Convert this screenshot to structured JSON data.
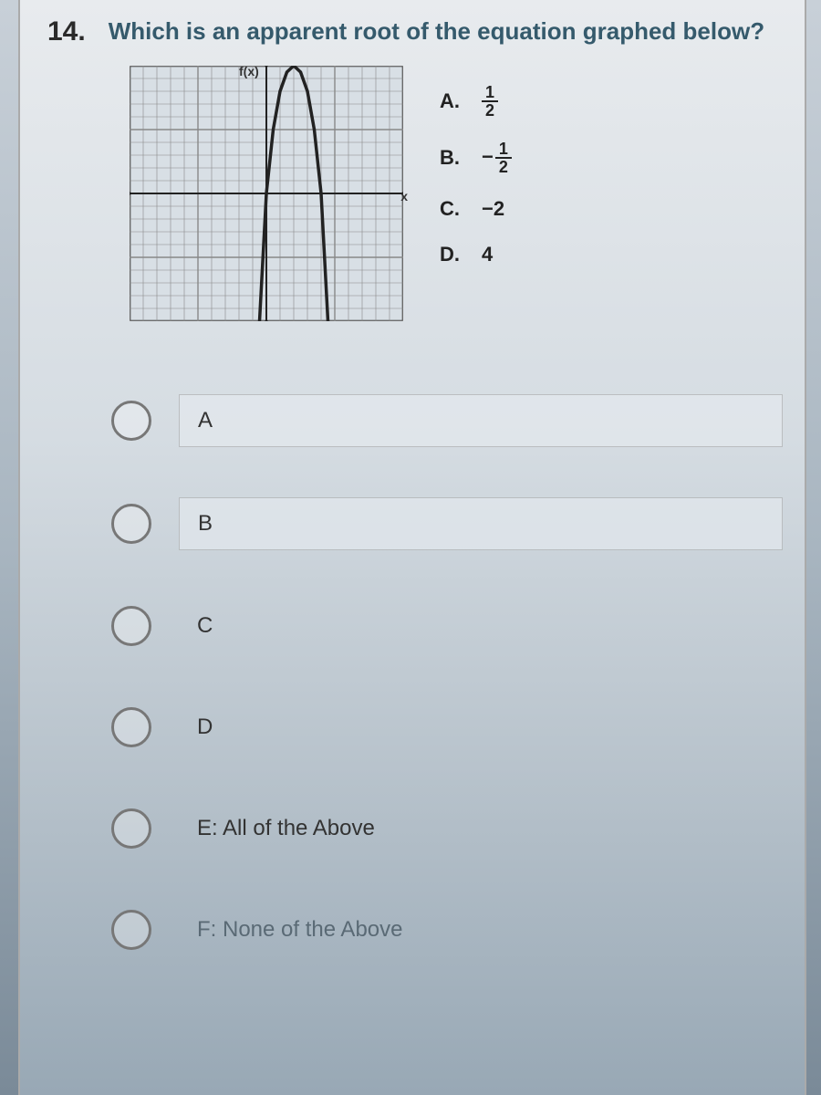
{
  "question": {
    "number": "14.",
    "text": "Which is an apparent root of the equation graphed below?",
    "color": "#355a6c"
  },
  "graph": {
    "axis_label_y": "f(x)",
    "axis_label_x": "x",
    "grid_color": "#555555",
    "grid_minor_color": "#888888",
    "background_color": "#d8dfe5",
    "curve_color": "#222222",
    "xlim": [
      -10,
      10
    ],
    "ylim": [
      -10,
      10
    ],
    "curve_points": [
      [
        -0.5,
        -10
      ],
      [
        -0.2,
        -4
      ],
      [
        0,
        0
      ],
      [
        0.5,
        5
      ],
      [
        1,
        8
      ],
      [
        1.5,
        9.5
      ],
      [
        2,
        10
      ],
      [
        2.5,
        9.5
      ],
      [
        3,
        8
      ],
      [
        3.5,
        5
      ],
      [
        4,
        0
      ],
      [
        4.2,
        -4
      ],
      [
        4.5,
        -10
      ]
    ]
  },
  "answer_choices": [
    {
      "label": "A.",
      "type": "fraction",
      "num": "1",
      "den": "2",
      "negative": false
    },
    {
      "label": "B.",
      "type": "fraction",
      "num": "1",
      "den": "2",
      "negative": true
    },
    {
      "label": "C.",
      "type": "plain",
      "value": "−2"
    },
    {
      "label": "D.",
      "type": "plain",
      "value": "4"
    }
  ],
  "options": [
    {
      "label": "A",
      "boxed": true
    },
    {
      "label": "B",
      "boxed": true
    },
    {
      "label": "C",
      "boxed": false
    },
    {
      "label": "D",
      "boxed": false
    },
    {
      "label": "E: All of the Above",
      "boxed": false
    },
    {
      "label": "F: None of the Above",
      "boxed": false,
      "faded": true
    }
  ],
  "colors": {
    "radio_border": "#777777",
    "option_text": "#333333",
    "faded_text": "#5a6a75"
  }
}
